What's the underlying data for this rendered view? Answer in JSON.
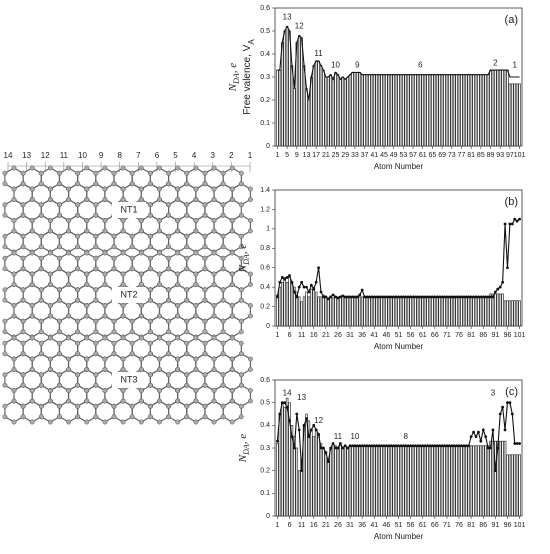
{
  "diagram": {
    "top_numbers": [
      "14",
      "13",
      "12",
      "11",
      "10",
      "9",
      "8",
      "7",
      "6",
      "5",
      "4",
      "3",
      "2",
      "1"
    ],
    "tubes": [
      "NT1",
      "NT2",
      "NT3"
    ]
  },
  "chart_data": [
    {
      "type": "bar",
      "panel": "(a)",
      "ylabel": [
        {
          "text": "N"
        },
        {
          "text": "DA",
          "sub": true
        },
        {
          "text": ", e"
        }
      ],
      "ylabel2": [
        {
          "text": "Free valence, V"
        },
        {
          "text": "A",
          "sub": true
        }
      ],
      "xlabel": "Atom Number",
      "x": [
        1,
        2,
        3,
        4,
        5,
        6,
        7,
        8,
        9,
        10,
        11,
        12,
        13,
        14,
        15,
        16,
        17,
        18,
        19,
        20,
        21,
        22,
        23,
        24,
        25,
        26,
        27,
        28,
        29,
        30,
        31,
        32,
        33,
        34,
        35,
        36,
        37,
        38,
        39,
        40,
        41,
        42,
        43,
        44,
        45,
        46,
        47,
        48,
        49,
        50,
        51,
        52,
        53,
        54,
        55,
        56,
        57,
        58,
        59,
        60,
        61,
        62,
        63,
        64,
        65,
        66,
        67,
        68,
        69,
        70,
        71,
        72,
        73,
        74,
        75,
        76,
        77,
        78,
        79,
        80,
        81,
        82,
        83,
        84,
        85,
        86,
        87,
        88,
        89,
        90,
        91,
        92,
        93,
        94,
        95,
        96,
        97,
        98,
        99,
        100,
        101
      ],
      "xlim": [
        0,
        102
      ],
      "xticks": [
        1,
        5,
        9,
        13,
        17,
        21,
        25,
        29,
        33,
        37,
        41,
        45,
        49,
        53,
        57,
        61,
        65,
        69,
        73,
        77,
        81,
        85,
        89,
        93,
        97,
        101
      ],
      "ylim": [
        0,
        0.6
      ],
      "yticks": [
        0,
        0.1,
        0.2,
        0.3,
        0.4,
        0.5,
        0.6
      ],
      "series": [
        {
          "mark": "bar",
          "color": "#333333",
          "values": [
            0.33,
            0.33,
            0.45,
            0.5,
            0.52,
            0.5,
            0.35,
            0.25,
            0.45,
            0.48,
            0.47,
            0.35,
            0.25,
            0.2,
            0.3,
            0.35,
            0.37,
            0.37,
            0.35,
            0.33,
            0.3,
            0.3,
            0.31,
            0.29,
            0.32,
            0.31,
            0.29,
            0.3,
            0.29,
            0.3,
            0.31,
            0.32,
            0.32,
            0.32,
            0.32,
            0.31,
            0.31,
            0.31,
            0.31,
            0.31,
            0.31,
            0.31,
            0.31,
            0.31,
            0.31,
            0.31,
            0.31,
            0.31,
            0.31,
            0.31,
            0.31,
            0.31,
            0.31,
            0.31,
            0.31,
            0.31,
            0.31,
            0.31,
            0.31,
            0.31,
            0.31,
            0.31,
            0.31,
            0.31,
            0.31,
            0.31,
            0.31,
            0.31,
            0.31,
            0.31,
            0.31,
            0.31,
            0.31,
            0.31,
            0.31,
            0.31,
            0.31,
            0.31,
            0.31,
            0.31,
            0.31,
            0.31,
            0.31,
            0.31,
            0.31,
            0.31,
            0.31,
            0.31,
            0.33,
            0.33,
            0.33,
            0.33,
            0.33,
            0.33,
            0.33,
            0.33,
            0.27,
            0.27,
            0.27,
            0.27,
            0.27
          ]
        },
        {
          "mark": "line",
          "color": "#111111",
          "markers": false,
          "values": [
            0.33,
            0.33,
            0.45,
            0.5,
            0.52,
            0.5,
            0.35,
            0.25,
            0.45,
            0.48,
            0.47,
            0.35,
            0.25,
            0.2,
            0.3,
            0.35,
            0.37,
            0.37,
            0.35,
            0.33,
            0.3,
            0.3,
            0.31,
            0.29,
            0.32,
            0.31,
            0.29,
            0.3,
            0.29,
            0.3,
            0.31,
            0.32,
            0.32,
            0.32,
            0.32,
            0.31,
            0.31,
            0.31,
            0.31,
            0.31,
            0.31,
            0.31,
            0.31,
            0.31,
            0.31,
            0.31,
            0.31,
            0.31,
            0.31,
            0.31,
            0.31,
            0.31,
            0.31,
            0.31,
            0.31,
            0.31,
            0.31,
            0.31,
            0.31,
            0.31,
            0.31,
            0.31,
            0.31,
            0.31,
            0.31,
            0.31,
            0.31,
            0.31,
            0.31,
            0.31,
            0.31,
            0.31,
            0.31,
            0.31,
            0.31,
            0.31,
            0.31,
            0.31,
            0.31,
            0.31,
            0.31,
            0.31,
            0.31,
            0.31,
            0.31,
            0.31,
            0.31,
            0.31,
            0.33,
            0.33,
            0.33,
            0.33,
            0.33,
            0.33,
            0.33,
            0.33,
            0.3,
            0.3,
            0.3,
            0.3,
            0.3
          ]
        }
      ],
      "annotations": [
        {
          "text": "13",
          "x": 5,
          "y": 0.56
        },
        {
          "text": "12",
          "x": 10,
          "y": 0.52
        },
        {
          "text": "11",
          "x": 18,
          "y": 0.4
        },
        {
          "text": "10",
          "x": 25,
          "y": 0.35
        },
        {
          "text": "9",
          "x": 34,
          "y": 0.35
        },
        {
          "text": "6",
          "x": 60,
          "y": 0.35
        },
        {
          "text": "2",
          "x": 91,
          "y": 0.36
        },
        {
          "text": "1",
          "x": 99,
          "y": 0.35
        }
      ]
    },
    {
      "type": "bar",
      "panel": "(b)",
      "ylabel": [
        {
          "text": "N"
        },
        {
          "text": "DA",
          "sub": true
        },
        {
          "text": ", e"
        }
      ],
      "xlabel": "Atom Number",
      "x": [
        1,
        2,
        3,
        4,
        5,
        6,
        7,
        8,
        9,
        10,
        11,
        12,
        13,
        14,
        15,
        16,
        17,
        18,
        19,
        20,
        21,
        22,
        23,
        24,
        25,
        26,
        27,
        28,
        29,
        30,
        31,
        32,
        33,
        34,
        35,
        36,
        37,
        38,
        39,
        40,
        41,
        42,
        43,
        44,
        45,
        46,
        47,
        48,
        49,
        50,
        51,
        52,
        53,
        54,
        55,
        56,
        57,
        58,
        59,
        60,
        61,
        62,
        63,
        64,
        65,
        66,
        67,
        68,
        69,
        70,
        71,
        72,
        73,
        74,
        75,
        76,
        77,
        78,
        79,
        80,
        81,
        82,
        83,
        84,
        85,
        86,
        87,
        88,
        89,
        90,
        91,
        92,
        93,
        94,
        95,
        96,
        97,
        98,
        99,
        100,
        101
      ],
      "xlim": [
        0,
        102
      ],
      "xticks": [
        1,
        6,
        11,
        16,
        21,
        26,
        31,
        36,
        41,
        46,
        51,
        56,
        61,
        66,
        71,
        76,
        81,
        86,
        91,
        96,
        101
      ],
      "ylim": [
        0,
        1.4
      ],
      "yticks": [
        0,
        0.2,
        0.4,
        0.6,
        0.8,
        1,
        1.2,
        1.4
      ],
      "series": [
        {
          "mark": "bar",
          "color": "#333333",
          "values": [
            0.32,
            0.4,
            0.45,
            0.5,
            0.45,
            0.5,
            0.45,
            0.4,
            0.35,
            0.3,
            0.25,
            0.3,
            0.35,
            0.3,
            0.38,
            0.4,
            0.35,
            0.3,
            0.3,
            0.32,
            0.3,
            0.28,
            0.31,
            0.29,
            0.3,
            0.28,
            0.3,
            0.31,
            0.29,
            0.3,
            0.3,
            0.3,
            0.3,
            0.3,
            0.3,
            0.3,
            0.3,
            0.3,
            0.3,
            0.3,
            0.3,
            0.3,
            0.3,
            0.3,
            0.3,
            0.3,
            0.3,
            0.3,
            0.3,
            0.3,
            0.3,
            0.3,
            0.3,
            0.3,
            0.3,
            0.3,
            0.3,
            0.3,
            0.3,
            0.3,
            0.3,
            0.3,
            0.3,
            0.3,
            0.3,
            0.3,
            0.3,
            0.3,
            0.3,
            0.3,
            0.3,
            0.3,
            0.3,
            0.3,
            0.3,
            0.3,
            0.3,
            0.3,
            0.3,
            0.3,
            0.3,
            0.3,
            0.3,
            0.3,
            0.3,
            0.3,
            0.3,
            0.3,
            0.33,
            0.33,
            0.33,
            0.33,
            0.33,
            0.33,
            0.26,
            0.26,
            0.26,
            0.26,
            0.26,
            0.26,
            0.26
          ]
        },
        {
          "mark": "line",
          "color": "#111111",
          "markers": true,
          "values": [
            0.3,
            0.45,
            0.5,
            0.48,
            0.5,
            0.52,
            0.45,
            0.35,
            0.3,
            0.4,
            0.45,
            0.4,
            0.4,
            0.35,
            0.42,
            0.38,
            0.45,
            0.6,
            0.35,
            0.3,
            0.3,
            0.28,
            0.3,
            0.32,
            0.3,
            0.29,
            0.3,
            0.31,
            0.3,
            0.3,
            0.3,
            0.3,
            0.3,
            0.3,
            0.32,
            0.37,
            0.3,
            0.3,
            0.3,
            0.3,
            0.3,
            0.3,
            0.3,
            0.3,
            0.3,
            0.3,
            0.3,
            0.3,
            0.3,
            0.3,
            0.3,
            0.3,
            0.3,
            0.3,
            0.3,
            0.3,
            0.3,
            0.3,
            0.3,
            0.3,
            0.3,
            0.3,
            0.3,
            0.3,
            0.3,
            0.3,
            0.3,
            0.3,
            0.3,
            0.3,
            0.3,
            0.3,
            0.3,
            0.3,
            0.3,
            0.3,
            0.3,
            0.3,
            0.3,
            0.3,
            0.3,
            0.3,
            0.3,
            0.3,
            0.3,
            0.3,
            0.3,
            0.3,
            0.3,
            0.3,
            0.35,
            0.38,
            0.4,
            0.45,
            1.05,
            0.6,
            1.05,
            1.05,
            1.1,
            1.08,
            1.1
          ]
        }
      ],
      "annotations": []
    },
    {
      "type": "bar",
      "panel": "(c)",
      "ylabel": [
        {
          "text": "N"
        },
        {
          "text": "DA",
          "sub": true
        },
        {
          "text": ", e"
        }
      ],
      "xlabel": "Atom Number",
      "x": [
        1,
        2,
        3,
        4,
        5,
        6,
        7,
        8,
        9,
        10,
        11,
        12,
        13,
        14,
        15,
        16,
        17,
        18,
        19,
        20,
        21,
        22,
        23,
        24,
        25,
        26,
        27,
        28,
        29,
        30,
        31,
        32,
        33,
        34,
        35,
        36,
        37,
        38,
        39,
        40,
        41,
        42,
        43,
        44,
        45,
        46,
        47,
        48,
        49,
        50,
        51,
        52,
        53,
        54,
        55,
        56,
        57,
        58,
        59,
        60,
        61,
        62,
        63,
        64,
        65,
        66,
        67,
        68,
        69,
        70,
        71,
        72,
        73,
        74,
        75,
        76,
        77,
        78,
        79,
        80,
        81,
        82,
        83,
        84,
        85,
        86,
        87,
        88,
        89,
        90,
        91,
        92,
        93,
        94,
        95,
        96,
        97,
        98,
        99,
        100,
        101
      ],
      "xlim": [
        0,
        102
      ],
      "xticks": [
        1,
        6,
        11,
        16,
        21,
        26,
        31,
        36,
        41,
        46,
        51,
        56,
        61,
        66,
        71,
        76,
        81,
        86,
        91,
        96,
        101
      ],
      "ylim": [
        0,
        0.6
      ],
      "yticks": [
        0,
        0.1,
        0.2,
        0.3,
        0.4,
        0.5,
        0.6
      ],
      "series": [
        {
          "mark": "bar",
          "color": "#333333",
          "values": [
            0.32,
            0.45,
            0.5,
            0.48,
            0.52,
            0.5,
            0.4,
            0.35,
            0.3,
            0.2,
            0.25,
            0.4,
            0.45,
            0.42,
            0.38,
            0.35,
            0.38,
            0.36,
            0.32,
            0.3,
            0.28,
            0.25,
            0.3,
            0.32,
            0.31,
            0.3,
            0.31,
            0.3,
            0.31,
            0.3,
            0.31,
            0.31,
            0.31,
            0.31,
            0.31,
            0.31,
            0.31,
            0.31,
            0.31,
            0.31,
            0.31,
            0.31,
            0.31,
            0.31,
            0.31,
            0.31,
            0.31,
            0.31,
            0.31,
            0.31,
            0.31,
            0.31,
            0.31,
            0.31,
            0.31,
            0.31,
            0.31,
            0.31,
            0.31,
            0.31,
            0.31,
            0.31,
            0.31,
            0.31,
            0.31,
            0.31,
            0.31,
            0.31,
            0.31,
            0.31,
            0.31,
            0.31,
            0.31,
            0.31,
            0.31,
            0.31,
            0.31,
            0.31,
            0.31,
            0.31,
            0.31,
            0.31,
            0.31,
            0.31,
            0.31,
            0.31,
            0.31,
            0.31,
            0.33,
            0.33,
            0.33,
            0.33,
            0.33,
            0.33,
            0.33,
            0.27,
            0.27,
            0.27,
            0.27,
            0.27,
            0.27
          ]
        },
        {
          "mark": "line",
          "color": "#111111",
          "markers": true,
          "values": [
            0.33,
            0.45,
            0.5,
            0.5,
            0.48,
            0.42,
            0.35,
            0.3,
            0.45,
            0.38,
            0.2,
            0.4,
            0.43,
            0.35,
            0.38,
            0.4,
            0.38,
            0.36,
            0.3,
            0.3,
            0.28,
            0.24,
            0.3,
            0.32,
            0.3,
            0.3,
            0.32,
            0.3,
            0.31,
            0.3,
            0.31,
            0.31,
            0.31,
            0.31,
            0.31,
            0.31,
            0.31,
            0.31,
            0.31,
            0.31,
            0.31,
            0.31,
            0.31,
            0.31,
            0.31,
            0.31,
            0.31,
            0.31,
            0.31,
            0.31,
            0.31,
            0.31,
            0.31,
            0.31,
            0.31,
            0.31,
            0.31,
            0.31,
            0.31,
            0.31,
            0.31,
            0.31,
            0.31,
            0.31,
            0.31,
            0.31,
            0.31,
            0.31,
            0.31,
            0.31,
            0.31,
            0.31,
            0.31,
            0.31,
            0.31,
            0.31,
            0.31,
            0.31,
            0.31,
            0.31,
            0.35,
            0.37,
            0.35,
            0.37,
            0.33,
            0.38,
            0.35,
            0.3,
            0.3,
            0.38,
            0.2,
            0.3,
            0.45,
            0.48,
            0.38,
            0.5,
            0.5,
            0.45,
            0.32,
            0.32,
            0.32
          ]
        }
      ],
      "annotations": [
        {
          "text": "14",
          "x": 5,
          "y": 0.54
        },
        {
          "text": "13",
          "x": 11,
          "y": 0.52
        },
        {
          "text": "12",
          "x": 18,
          "y": 0.42
        },
        {
          "text": "11",
          "x": 26,
          "y": 0.35
        },
        {
          "text": "10",
          "x": 33,
          "y": 0.35
        },
        {
          "text": "8",
          "x": 54,
          "y": 0.35
        },
        {
          "text": "3",
          "x": 90,
          "y": 0.54
        }
      ]
    }
  ]
}
